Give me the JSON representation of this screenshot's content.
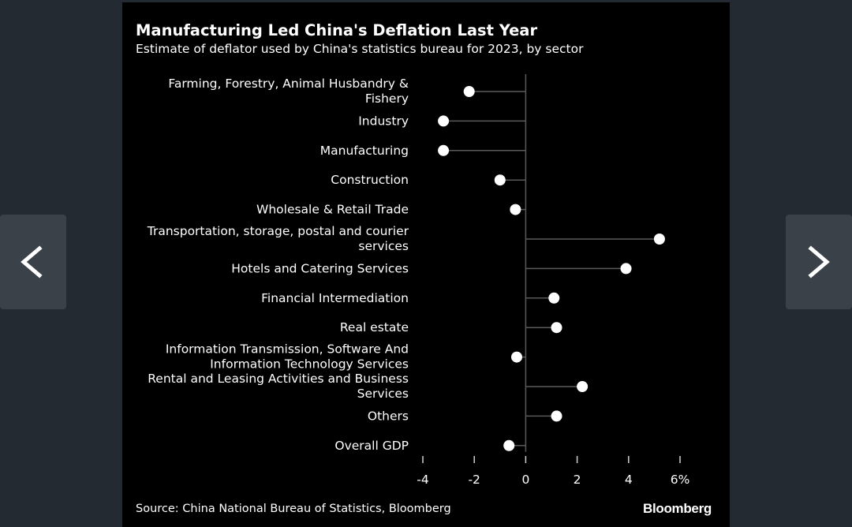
{
  "chart_data": {
    "type": "dot",
    "title": "Manufacturing Led China's Deflation Last Year",
    "subtitle": "Estimate of deflator used by China's statistics bureau for 2023, by sector",
    "categories": [
      [
        "Farming, Forestry, Animal Husbandry &",
        "Fishery"
      ],
      [
        "Industry"
      ],
      [
        "Manufacturing"
      ],
      [
        "Construction"
      ],
      [
        "Wholesale & Retail Trade"
      ],
      [
        "Transportation, storage, postal and courier",
        "services"
      ],
      [
        "Hotels and Catering Services"
      ],
      [
        "Financial Intermediation"
      ],
      [
        "Real estate"
      ],
      [
        "Information Transmission, Software And",
        "Information Technology Services"
      ],
      [
        "Rental and Leasing Activities and Business",
        "Services"
      ],
      [
        "Others"
      ],
      [
        "Overall GDP"
      ]
    ],
    "values": [
      -2.2,
      -3.2,
      -3.2,
      -1.0,
      -0.4,
      5.2,
      3.9,
      1.1,
      1.2,
      -0.35,
      2.2,
      1.2,
      -0.65
    ],
    "xlim": [
      -4,
      6
    ],
    "xticks": [
      -4,
      -2,
      0,
      2,
      4,
      6
    ],
    "xtick_labels": [
      "-4",
      "-2",
      "0",
      "2",
      "4",
      "6%"
    ],
    "source": "Source: China National Bureau of Statistics, Bloomberg",
    "brand": "Bloomberg",
    "colors": {
      "background": "#000000",
      "page": "#232a31",
      "dot": "#ffffff",
      "stem": "#5a5a5a",
      "text": "#ffffff"
    }
  },
  "nav": {
    "prev_icon": "chevron-left-icon",
    "next_icon": "chevron-right-icon"
  }
}
